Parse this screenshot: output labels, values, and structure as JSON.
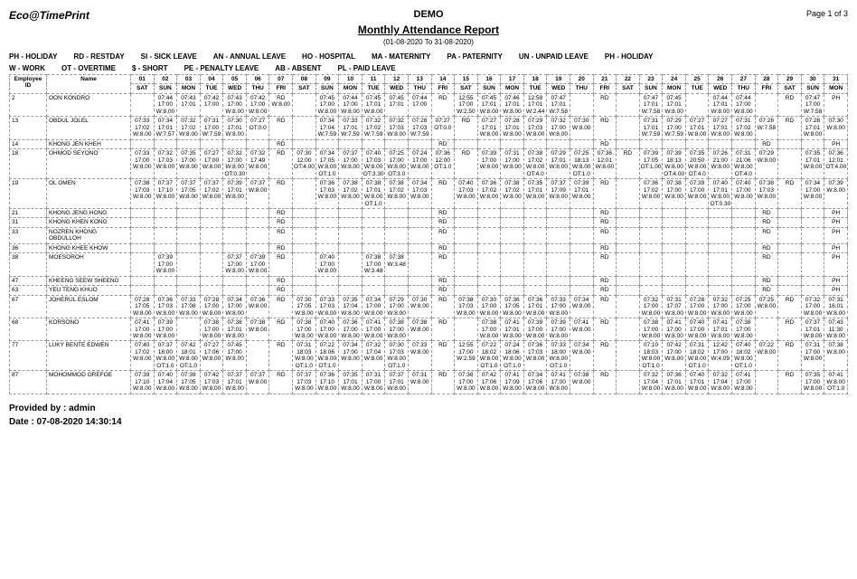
{
  "header": {
    "brand": "Eco@TimePrint",
    "title_small": "DEMO",
    "title_main": "Monthly Attendance Report",
    "date_range": "(01-08-2020 To 31-08-2020)",
    "page_label": "Page 1 of 3"
  },
  "legend_row1": [
    "PH  - HOLIDAY",
    "RD  - RESTDAY",
    "SI  - SICK LEAVE",
    "AN  - ANNUAL LEAVE",
    "HO  - HOSPITAL",
    "MA  - MATERNITY",
    "PA  - PATERNITY",
    "UN  - UNPAID LEAVE",
    "PH  - HOLIDAY"
  ],
  "legend_row2": [
    "W - WORK",
    "OT - OVERTIME",
    "$ - SHORT",
    "PE  - PENALTY LEAVE",
    "AB  - ABSENT",
    "PL  - PAID LEAVE"
  ],
  "columns": {
    "emp_id": "Employee ID",
    "name": "Name",
    "day_nums": [
      "01",
      "02",
      "03",
      "04",
      "05",
      "06",
      "07",
      "08",
      "09",
      "10",
      "11",
      "12",
      "13",
      "14",
      "15",
      "16",
      "17",
      "18",
      "19",
      "20",
      "21",
      "22",
      "23",
      "24",
      "25",
      "26",
      "27",
      "28",
      "29",
      "30",
      "31"
    ],
    "day_dow": [
      "SAT",
      "SUN",
      "MON",
      "TUE",
      "WED",
      "THU",
      "FRI",
      "SAT",
      "SUN",
      "MON",
      "TUE",
      "WED",
      "THU",
      "FRI",
      "SAT",
      "SUN",
      "MON",
      "TUE",
      "WED",
      "THU",
      "FRI",
      "SAT",
      "SUN",
      "MON",
      "TUE",
      "WED",
      "THU",
      "FRI",
      "SAT",
      "SUN",
      "MON"
    ]
  },
  "rows": [
    {
      "id": "2",
      "name": "OON KONDRO",
      "cells": [
        "",
        "07:44\n17:00\n\nW:8.00",
        "07:43\n17:01",
        "07:42\n17:00",
        "07:43\n17:00\nW:8.00",
        "07:42\n17:00\nW:8.00",
        "RD\n\nW:8.00",
        "",
        "07:45\n17:00\nW:8.00",
        "07:44\n17:00\nW:8.00",
        "07:45\n17:01\nW:8.00",
        "07:45\n17:01",
        "07:44\n17:00",
        "RD",
        "12:55\n17:00\n\nW:2.50",
        "07:45\n17:01\nW:8.00",
        "07:46\n17:01\nW:8.00",
        "12:58\n17:01\nW:2.44",
        "07:47\n17:01\nW:7.58",
        "",
        "RD",
        "",
        "07:47\n17:01\nW:7.58",
        "07:45\n17:01\nW:8.00",
        "",
        "07:44\n17:01\nW:8.00",
        "07:44\n17:00\nW:8.00",
        "",
        "RD",
        "07:47\n17:00\nW:7.58",
        "PH"
      ]
    },
    {
      "id": "13",
      "name": "OBDUL JOLEL",
      "cells": [
        "07:33\n17:02\n\nW:8.00",
        "07:34\n17:01\nW:7.57",
        "07:32\n17:02\nW:8.00",
        "07:31\n17:00\nW:7.59",
        "07:30\n17:01\nW:8.00",
        "07:27\nOT:0.0",
        "RD",
        "",
        "07:34\n17:04\nW:7.59",
        "07:33\n17:01\nW:7.59",
        "07:32\n17:02\nW:7.59",
        "07:32\n17:03\nW:8.00",
        "07:28\n17:03\nW:7.59",
        "07:27\nOT:0.0",
        "RD",
        "07:27\n17:01\nW:8.00",
        "07:28\n17:01\nW:8.00",
        "07:29\n17:03\nW:8.00",
        "07:32\n17:00\nW:8.00",
        "07:30\nW:8.00",
        "RD",
        "",
        "07:31\n17:01\nW:7.59",
        "07:29\n17:00\nW:7.59",
        "07:27\n17:01\nW:8.00",
        "07:27\n17:01\nW:8.00",
        "07:31\n17:02\nW:8.00",
        "07:28\nW:7.58",
        "RD",
        "07:28\n17:01\nW:8.00",
        "07:30\nW:8.00"
      ]
    },
    {
      "id": "14",
      "name": "KHONG JEN KHEH",
      "cells": [
        "",
        "",
        "",
        "",
        "",
        "",
        "RD",
        "",
        "",
        "",
        "",
        "",
        "",
        "RD",
        "",
        "",
        "",
        "",
        "",
        "",
        "RD",
        "",
        "",
        "",
        "",
        "",
        "",
        "RD",
        "",
        "",
        "PH"
      ]
    },
    {
      "id": "18",
      "name": "OHMOD SEYONO",
      "cells": [
        "07:33\n17:00\nW:8.00",
        "07:32\n17:03\nW:8.00",
        "07:35\n17:00\nW:8.00",
        "07:27\n17:00\nW:8.00",
        "07:32\n17:00\nW:8.00\nOT:0.30",
        "07:32\n17:49\nW:8.00",
        "RD",
        "07:30\n12:00\nOT:4.00",
        "07:34\n17:05\nW:8.00\nOT:1.0",
        "07:37\n17:00\nW:8.00",
        "07:40\n17:03\nW:8.00\nOT:3.30",
        "07:25\n17:00\nW:8.00\nOT:3.0",
        "07:24\n17:00\nW:8.00",
        "07:36\n12:00\nOT:1.0",
        "RD",
        "07:39\n17:00\nW:8.00",
        "07:31\n17:00\nW:8.00",
        "07:38\n17:02\nW:8.00\nOT:4.0",
        "07:29\n17:01\nW:8.00",
        "07:25\n18:13\nW:8.00\nOT:1.0",
        "07:36\n12:01\nW:8.00",
        "RD",
        "07:39\n17:05\nOT:1.00",
        "07:39\n18:13\nW:8.00\nOT:4.00",
        "07:35\n20:50\nW:8.00\nOT:4.0",
        "07:26\n21:00\nW:8.00",
        "07:31\n21:06\nW:8.00\nOT:4.0",
        "07:29\nW:8.00",
        "",
        "07:35\n17:01\nW:8.00",
        "07:36\n12:01\nOT:4.00"
      ]
    },
    {
      "id": "19",
      "name": "OL OMEN",
      "cells": [
        "07:38\n17:03\nW:8.00",
        "07:37\n17:10\nW:8.00",
        "07:37\n17:05\nW:8.00",
        "07:37\n17:02\nW:8.00",
        "07:39\n17:01\nW:8.00",
        "07:37\nW:8.00",
        "RD",
        "",
        "07:36\n17:03\nW:8.00",
        "07:38\n17:02\nW:8.00",
        "07:38\n17:01\nW:8.00\nOT:1.0",
        "07:38\n17:02\nW:8.00",
        "07:34\n17:03\nW:8.00",
        "RD",
        "07:40\n17:03\nW:8.00",
        "07:36\n17:02\nW:8.00",
        "07:38\n17:02\nW:8.00",
        "07:35\n17:01\nW:8.00",
        "07:37\n17:09\nW:8.00",
        "07:39\n17:01\nW:8.00",
        "RD",
        "",
        "07:36\n17:02\nW:8.00",
        "07:38\n17:00\nW:8.00",
        "07:39\n17:00\nW:8.00",
        "07:40\n17:01\nW:8.00\nOT:0.30",
        "07:40\n17:00\nW:8.00",
        "07:38\n17:03\nW:8.00",
        "RD",
        "07:34\n17:00\nW:8.00",
        "07:39\nW:8.00"
      ]
    },
    {
      "id": "21",
      "name": "KHONG JENG HONG",
      "cells": [
        "",
        "",
        "",
        "",
        "",
        "",
        "RD",
        "",
        "",
        "",
        "",
        "",
        "",
        "RD",
        "",
        "",
        "",
        "",
        "",
        "",
        "RD",
        "",
        "",
        "",
        "",
        "",
        "",
        "RD",
        "",
        "",
        "PH"
      ]
    },
    {
      "id": "31",
      "name": "KHONG KHEN KONG",
      "cells": [
        "",
        "",
        "",
        "",
        "",
        "",
        "RD",
        "",
        "",
        "",
        "",
        "",
        "",
        "RD",
        "",
        "",
        "",
        "",
        "",
        "",
        "RD",
        "",
        "",
        "",
        "",
        "",
        "",
        "RD",
        "",
        "",
        "PH"
      ]
    },
    {
      "id": "33",
      "name": "NOZREN KHONG OBDULLOH",
      "cells": [
        "",
        "",
        "",
        "",
        "",
        "",
        "RD",
        "",
        "",
        "",
        "",
        "",
        "",
        "RD",
        "",
        "",
        "",
        "",
        "",
        "",
        "RD",
        "",
        "",
        "",
        "",
        "",
        "",
        "RD",
        "",
        "",
        "PH"
      ]
    },
    {
      "id": "36",
      "name": "KHONG KHEE KHOW",
      "cells": [
        "",
        "",
        "",
        "",
        "",
        "",
        "RD",
        "",
        "",
        "",
        "",
        "",
        "",
        "RD",
        "",
        "",
        "",
        "",
        "",
        "",
        "RD",
        "",
        "",
        "",
        "",
        "",
        "",
        "RD",
        "",
        "",
        "PH"
      ]
    },
    {
      "id": "38",
      "name": "MOESOROH",
      "cells": [
        "",
        "07:39\n17:00\nW:8.00",
        "",
        "",
        "07:37\n17:00\nW:8.00",
        "07:39\n17:00\nW:8.00",
        "RD",
        "",
        "07:40\n17:00\nW:8.00",
        "",
        "07:38\n17:00\nW:3.48",
        "07:38\nW:3.48",
        "",
        "RD",
        "",
        "",
        "",
        "",
        "",
        "",
        "RD",
        "",
        "",
        "",
        "",
        "",
        "",
        "RD",
        "",
        "",
        "PH"
      ]
    },
    {
      "id": "47",
      "name": "KHEENG SEEW SHEENG",
      "cells": [
        "",
        "",
        "",
        "",
        "",
        "",
        "RD",
        "",
        "",
        "",
        "",
        "",
        "",
        "RD",
        "",
        "",
        "",
        "",
        "",
        "",
        "RD",
        "",
        "",
        "",
        "",
        "",
        "",
        "RD",
        "",
        "",
        "PH"
      ]
    },
    {
      "id": "63",
      "name": "YEU TENG KHUO",
      "cells": [
        "",
        "",
        "",
        "",
        "",
        "",
        "RD",
        "",
        "",
        "",
        "",
        "",
        "",
        "RD",
        "",
        "",
        "",
        "",
        "",
        "",
        "RD",
        "",
        "",
        "",
        "",
        "",
        "",
        "RD",
        "",
        "",
        "PH"
      ]
    },
    {
      "id": "67",
      "name": "JOHERUL ESLOM",
      "cells": [
        "07:28\n17:05\nW:8.00",
        "07:36\n17:03\nW:8.00",
        "07:33\n17:08\nW:8.00",
        "07:28\n17:00\nW:8.00",
        "07:34\n17:00\nW:8.00",
        "07:36\nW:8.00",
        "RD",
        "07:30\n17:05\nW:8.00",
        "07:33\n17:03\nW:8.00",
        "07:35\n17:04\nW:8.00",
        "07:34\n17:00\nW:8.00",
        "07:29\n17:00\nW:8.00",
        "07:30\nW:8.00",
        "RD",
        "07:38\n17:03\nW:8.00",
        "07:30\n17:00\nW:8.00",
        "07:36\n17:05\nW:8.00",
        "07:36\n17:01\nW:8.00",
        "07:33\n17:00\nW:8.00",
        "07:34\nW:8.00",
        "RD",
        "",
        "07:32\n17:00\nW:8.00",
        "07:31\n17:07\nW:8.00",
        "07:28\n17:00\nW:8.00",
        "07:32\n17:00\nW:8.00",
        "07:25\n17:00\nW:8.00",
        "07:25\nW:8.00",
        "RD",
        "07:32\n17:00\nW:8.00",
        "07:31\n16:01\nW:8.00"
      ]
    },
    {
      "id": "68",
      "name": "KORSONO",
      "cells": [
        "07:41\n17:00\nW:8.00",
        "07:39\n17:00\nW:8.00",
        "",
        "07:38\n17:00\nW:8.00",
        "07:38\n17:01\nW:8.00",
        "07:38\nW:8.00",
        "RD",
        "07:38\n17:00\nW:8.00",
        "07:40\n17:00\nW:8.00",
        "07:36\n17:00\nW:8.00",
        "07:41\n17:00\nW:8.00",
        "07:38\n17:00\nW:8.00",
        "07:38\nW:8.00",
        "RD",
        "",
        "07:38\n17:00\nW:8.00",
        "07:41\n17:01\nW:8.00",
        "07:39\n17:00\nW:8.00",
        "07:39\n17:00\nW:8.00",
        "07:41\nW:8.00",
        "RD",
        "",
        "07:38\n17:00\nW:8.00",
        "07:41\n17:00\nW:8.00",
        "07:40\n17:00\nW:8.00",
        "07:41\n17:01\nW:8.00",
        "07:38\n17:00\nW:8.00",
        "",
        "RD",
        "07:37\n17:01\nW:8.00",
        "07:43\n11:30\nW:8.00"
      ]
    },
    {
      "id": "77",
      "name": "LUKY BENTE EDWEN",
      "cells": [
        "07:40\n17:02\nW:8.00",
        "07:37\n18:00\nW:8.00\nOT:1.0",
        "07:42\n18:01\nW:8.00\nOT:1.0",
        "07:27\n17:06\nW:8.00",
        "07:45\n17:00\nW:8.00",
        "",
        "RD",
        "07:31\n18:03\nW:8.00\nOT:1.0",
        "07:22\n18:06\nW:8.00\nOT:1.0",
        "07:34\n17:00\nW:8.00",
        "07:32\n17:04\nW:8.00",
        "07:30\n17:03\nW:8.00\nOT:1.0",
        "07:33\nW:8.00",
        "RD",
        "12:55\n17:00\nW:2.59",
        "07:22\n18:02\nW:8.00\nOT:1.0",
        "07:24\n18:06\nW:8.00\nOT:1.0",
        "07:36\n17:03\nW:8.00",
        "07:33\n18:00\nW:8.00\nOT:1.0",
        "07:34\nW:8.00",
        "RD",
        "",
        "07:10\n18:03\nW:8.00\nOT:1.0",
        "07:42\n17:00\nW:8.00",
        "07:31\n18:02\nW:8.00\nOT:1.0",
        "12:42\n17:00\nW:4.09",
        "07:40\n18:02\nW:8.00\nOT:1.0",
        "07:22\nW:8.00",
        "RD",
        "07:31\n17:00\nW:8.00",
        "07:38\nW:8.00"
      ]
    },
    {
      "id": "87",
      "name": "MOHOMMOD OREFOE",
      "cells": [
        "07:39\n17:10\nW:8.00",
        "07:40\n17:04\nW:8.00",
        "07:39\n17:05\nW:8.00",
        "07:42\n17:03\nW:8.00",
        "07:37\n17:01\nW:8.00",
        "07:37\nW:8.00",
        "RD",
        "07:37\n17:03\nW:8.00",
        "07:36\n17:10\nW:8.00",
        "07:35\n17:01\nW:8.00",
        "07:31\n17:00\nW:8.00",
        "07:37\n17:01\nW:8.00",
        "07:31\nW:8.00",
        "RD",
        "07:36\n17:00\nW:8.00",
        "07:42\n17:06\nW:8.00",
        "07:41\n17:09\nW:8.00",
        "07:34\n17:06\nW:8.00",
        "07:41\n17:00\nW:8.00",
        "07:38\nW:8.00",
        "RD",
        "",
        "07:32\n17:04\nW:8.00",
        "07:36\n17:01\nW:8.00",
        "07:40\n17:01\nW:8.00",
        "07:32\n17:04\nW:8.00",
        "07:41\n17:00\nW:8.00",
        "",
        "RD",
        "07:35\n17:00\nW:8.00",
        "07:41\nW:8.00\nOT:1.0"
      ]
    }
  ],
  "footer": {
    "provided_by": "Provided by : admin",
    "printed": "Date : 07-08-2020 14:30:14"
  }
}
